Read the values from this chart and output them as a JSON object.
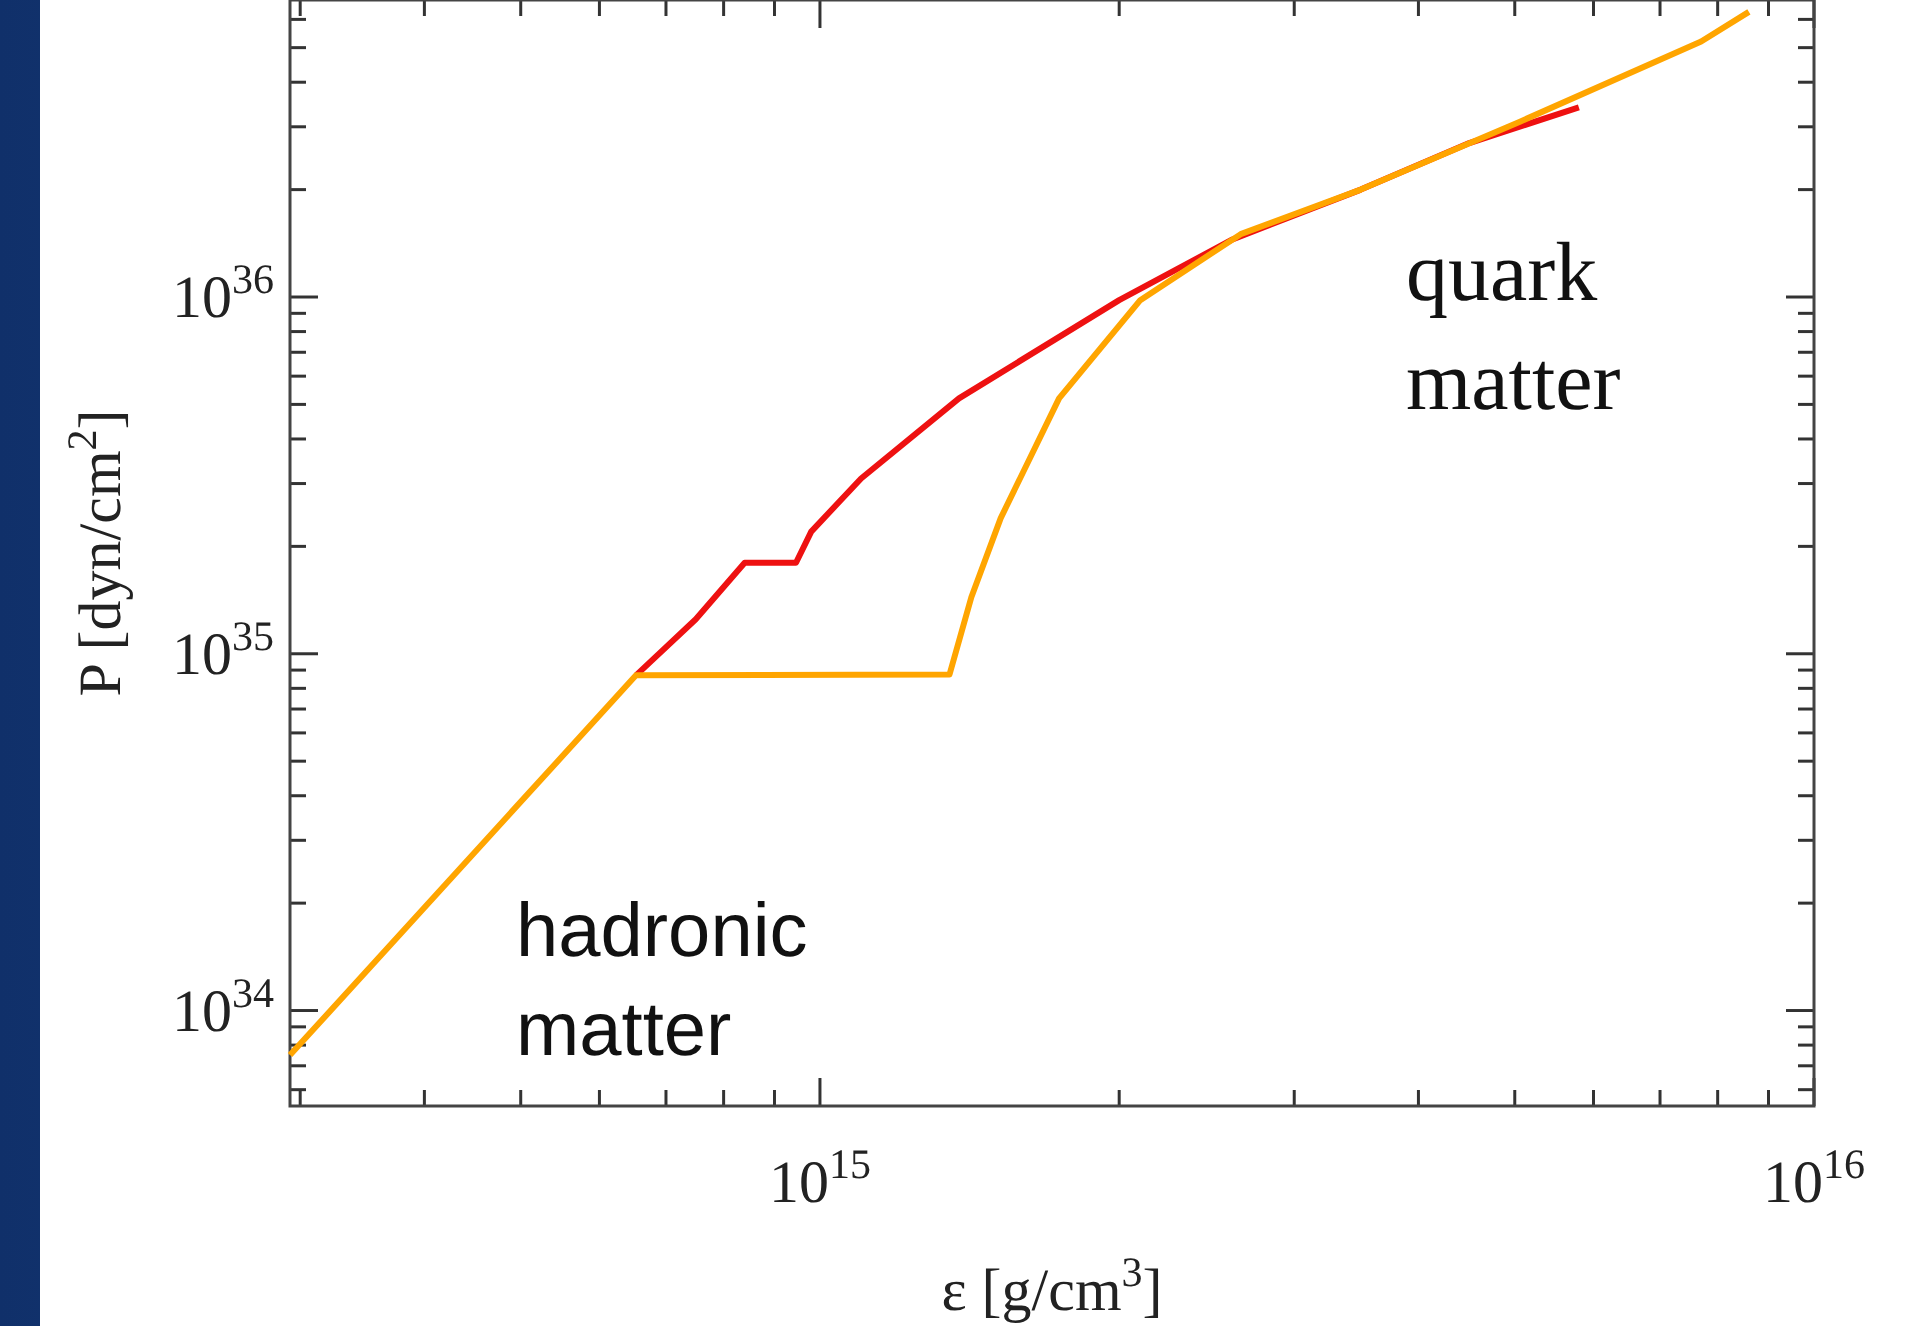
{
  "chart_data": {
    "type": "line",
    "xlabel": "ε [g/cm$^{3}$]",
    "ylabel": "P [dyn/cm$^{2}$]",
    "log": "xy",
    "grid": false,
    "marker": "none",
    "line_style": "solid",
    "xlim": [
      293000000000000.0,
      1e+16
    ],
    "ylim": [
      5.4e+33,
      6.8e+36
    ],
    "xticks": [
      {
        "value": 300000000000000.0,
        "label": null
      },
      {
        "value": 400000000000000.0,
        "label": null
      },
      {
        "value": 500000000000000.0,
        "label": null
      },
      {
        "value": 600000000000000.0,
        "label": null
      },
      {
        "value": 700000000000000.0,
        "label": null
      },
      {
        "value": 800000000000000.0,
        "label": null
      },
      {
        "value": 900000000000000.0,
        "label": null
      },
      {
        "value": 1000000000000000.0,
        "label": "10$^{15}$"
      },
      {
        "value": 2000000000000000.0,
        "label": null
      },
      {
        "value": 3000000000000000.0,
        "label": null
      },
      {
        "value": 4000000000000000.0,
        "label": null
      },
      {
        "value": 5000000000000000.0,
        "label": null
      },
      {
        "value": 6000000000000000.0,
        "label": null
      },
      {
        "value": 7000000000000000.0,
        "label": null
      },
      {
        "value": 8000000000000000.0,
        "label": null
      },
      {
        "value": 9000000000000000.0,
        "label": null
      },
      {
        "value": 1e+16,
        "label": "10$^{16}$"
      }
    ],
    "yticks": [
      {
        "value": 6e+33,
        "label": null
      },
      {
        "value": 7e+33,
        "label": null
      },
      {
        "value": 8e+33,
        "label": null
      },
      {
        "value": 9e+33,
        "label": null
      },
      {
        "value": 1e+34,
        "label": "10$^{34}$"
      },
      {
        "value": 2e+34,
        "label": null
      },
      {
        "value": 3e+34,
        "label": null
      },
      {
        "value": 4e+34,
        "label": null
      },
      {
        "value": 5e+34,
        "label": null
      },
      {
        "value": 6e+34,
        "label": null
      },
      {
        "value": 7e+34,
        "label": null
      },
      {
        "value": 8e+34,
        "label": null
      },
      {
        "value": 9e+34,
        "label": null
      },
      {
        "value": 1e+35,
        "label": "10$^{35}$"
      },
      {
        "value": 2e+35,
        "label": null
      },
      {
        "value": 3e+35,
        "label": null
      },
      {
        "value": 4e+35,
        "label": null
      },
      {
        "value": 5e+35,
        "label": null
      },
      {
        "value": 6e+35,
        "label": null
      },
      {
        "value": 7e+35,
        "label": null
      },
      {
        "value": 8e+35,
        "label": null
      },
      {
        "value": 9e+35,
        "label": null
      },
      {
        "value": 1e+36,
        "label": "10$^{36}$"
      },
      {
        "value": 2e+36,
        "label": null
      },
      {
        "value": 3e+36,
        "label": null
      },
      {
        "value": 4e+36,
        "label": null
      },
      {
        "value": 5e+36,
        "label": null
      },
      {
        "value": 6e+36,
        "label": null
      }
    ],
    "series": [
      {
        "color": "#ee1111",
        "x": [
          653000000000000.0,
          750000000000000.0,
          840000000000000.0,
          946000000000000.0,
          980000000000000.0,
          1100000000000000.0,
          1380000000000000.0,
          2000000000000000.0,
          2600000000000000.0,
          3500000000000000.0,
          4500000000000000.0,
          5800000000000000.0
        ],
        "values": [
          8.7e+34,
          1.25e+35,
          1.8e+35,
          1.8e+35,
          2.2e+35,
          3.1e+35,
          5.2e+35,
          9.8e+35,
          1.45e+36,
          2e+36,
          2.7e+36,
          3.4e+36
        ]
      },
      {
        "color": "#ffa500",
        "x": [
          293000000000000.0,
          653000000000000.0,
          1350000000000000.0,
          1420000000000000.0,
          1520000000000000.0,
          1740000000000000.0,
          2100000000000000.0,
          2650000000000000.0,
          3500000000000000.0,
          5060000000000000.0,
          7700000000000000.0,
          8600000000000000.0
        ],
        "values": [
          7.5e+33,
          8.7e+34,
          8.75e+34,
          1.44e+35,
          2.4e+35,
          5.2e+35,
          9.8e+35,
          1.5e+36,
          2e+36,
          3.1e+36,
          5.2e+36,
          6.3e+36
        ]
      }
    ],
    "annotations": [
      "hadronic matter",
      "quark matter"
    ]
  }
}
